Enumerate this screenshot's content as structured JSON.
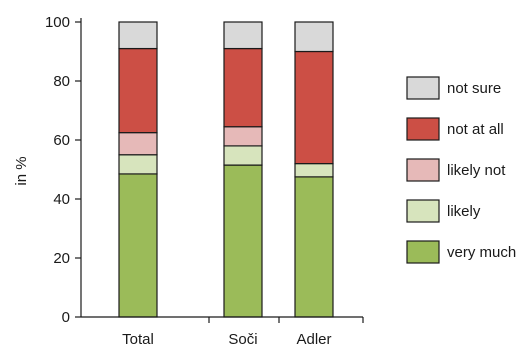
{
  "chart_data": {
    "type": "bar",
    "stacked": true,
    "categories": [
      "Total",
      "Soči",
      "Adler"
    ],
    "ylabel": "in %",
    "xlabel": "",
    "ylim": [
      0,
      100
    ],
    "yticks": [
      0,
      20,
      40,
      60,
      80,
      100
    ],
    "grid": false,
    "legend_position": "right",
    "series": [
      {
        "name": "very much",
        "color": "#9bbb59",
        "values": [
          48.5,
          51.5,
          47.5
        ]
      },
      {
        "name": "likely",
        "color": "#d7e4bd",
        "values": [
          6.5,
          6.5,
          4.5
        ]
      },
      {
        "name": "likely not",
        "color": "#e6b9b8",
        "values": [
          7.5,
          6.5,
          0
        ]
      },
      {
        "name": "not at all",
        "color": "#cc4f45",
        "values": [
          28.5,
          26.5,
          38.0
        ]
      },
      {
        "name": "not sure",
        "color": "#d9d9d9",
        "values": [
          9.0,
          9.0,
          10.0
        ]
      }
    ]
  }
}
